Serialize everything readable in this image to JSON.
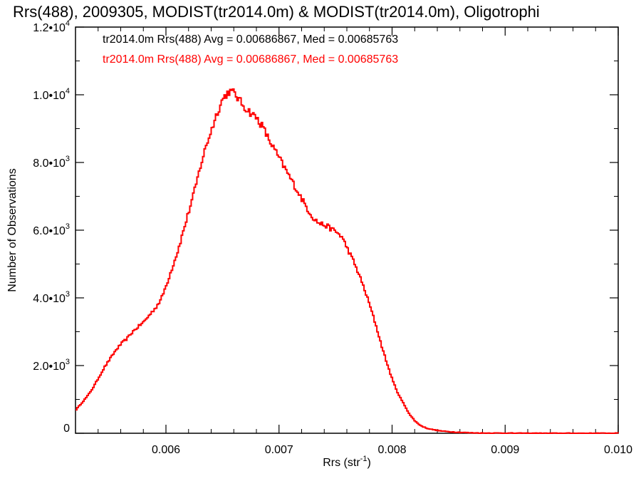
{
  "chart_data": {
    "type": "line",
    "title": "Rrs(488), 2009305, MODIST(tr2014.0m) & MODIST(tr2014.0m), Oligotrophi",
    "xlabel": "Rrs (str",
    "xlabel_sup": "-1",
    "xlabel_close": ")",
    "ylabel": "Number of Observations",
    "xlim": [
      0.0052,
      0.01
    ],
    "ylim": [
      0,
      12000
    ],
    "x_ticks": [
      {
        "value": 0.006,
        "label": "0.006"
      },
      {
        "value": 0.007,
        "label": "0.007"
      },
      {
        "value": 0.008,
        "label": "0.008"
      },
      {
        "value": 0.009,
        "label": "0.009"
      },
      {
        "value": 0.01,
        "label": "0.010"
      }
    ],
    "y_ticks": [
      {
        "value": 0,
        "mant": "0",
        "exp": ""
      },
      {
        "value": 2000,
        "mant": "2.0•10",
        "exp": "3"
      },
      {
        "value": 4000,
        "mant": "4.0•10",
        "exp": "3"
      },
      {
        "value": 6000,
        "mant": "6.0•10",
        "exp": "3"
      },
      {
        "value": 8000,
        "mant": "8.0•10",
        "exp": "3"
      },
      {
        "value": 10000,
        "mant": "1.0•10",
        "exp": "4"
      },
      {
        "value": 12000,
        "mant": "1.2•10",
        "exp": "4"
      }
    ],
    "legend": [
      {
        "text": "tr2014.0m Rrs(488) Avg = 0.00686867, Med = 0.00685763",
        "color": "#000000"
      },
      {
        "text": "tr2014.0m Rrs(488) Avg = 0.00686867, Med = 0.00685763",
        "color": "#ff0000"
      }
    ],
    "series": [
      {
        "color": "#ff0000",
        "step": true,
        "x": [
          0.0052,
          0.00525,
          0.0053,
          0.00535,
          0.0054,
          0.00545,
          0.0055,
          0.00555,
          0.0056,
          0.00565,
          0.0057,
          0.00575,
          0.0058,
          0.00585,
          0.0059,
          0.00595,
          0.006,
          0.00605,
          0.0061,
          0.00615,
          0.0062,
          0.00625,
          0.0063,
          0.00635,
          0.0064,
          0.00645,
          0.0065,
          0.00655,
          0.0066,
          0.00665,
          0.0067,
          0.00675,
          0.0068,
          0.00685,
          0.0069,
          0.00695,
          0.007,
          0.00705,
          0.0071,
          0.00715,
          0.0072,
          0.00725,
          0.0073,
          0.00735,
          0.0074,
          0.00745,
          0.0075,
          0.00755,
          0.0076,
          0.00765,
          0.0077,
          0.00775,
          0.0078,
          0.00785,
          0.0079,
          0.00795,
          0.008,
          0.00805,
          0.0081,
          0.00815,
          0.0082,
          0.00825,
          0.0083,
          0.00835,
          0.0084,
          0.00845,
          0.0085,
          0.00855,
          0.0086,
          0.00865,
          0.0087,
          0.00875,
          0.0088,
          0.00885,
          0.0089,
          0.00895,
          0.009,
          0.0091,
          0.0092,
          0.0093,
          0.0094,
          0.0095,
          0.0096,
          0.0097,
          0.0098,
          0.0099,
          0.01
        ],
        "y": [
          700,
          900,
          1100,
          1350,
          1650,
          1950,
          2200,
          2450,
          2650,
          2800,
          3000,
          3150,
          3300,
          3500,
          3700,
          3950,
          4400,
          4900,
          5400,
          6000,
          6600,
          7200,
          7900,
          8500,
          9000,
          9500,
          9900,
          10100,
          10050,
          9800,
          9600,
          9450,
          9300,
          9050,
          8700,
          8400,
          8100,
          7800,
          7500,
          7200,
          6900,
          6600,
          6350,
          6200,
          6150,
          6050,
          5950,
          5800,
          5450,
          5100,
          4700,
          4250,
          3750,
          3200,
          2600,
          2050,
          1550,
          1150,
          850,
          550,
          350,
          220,
          150,
          110,
          80,
          60,
          45,
          35,
          28,
          20,
          12,
          10,
          5,
          5,
          5,
          5,
          5,
          0,
          0,
          0,
          0,
          0,
          0,
          0,
          0,
          0,
          0
        ]
      }
    ]
  }
}
